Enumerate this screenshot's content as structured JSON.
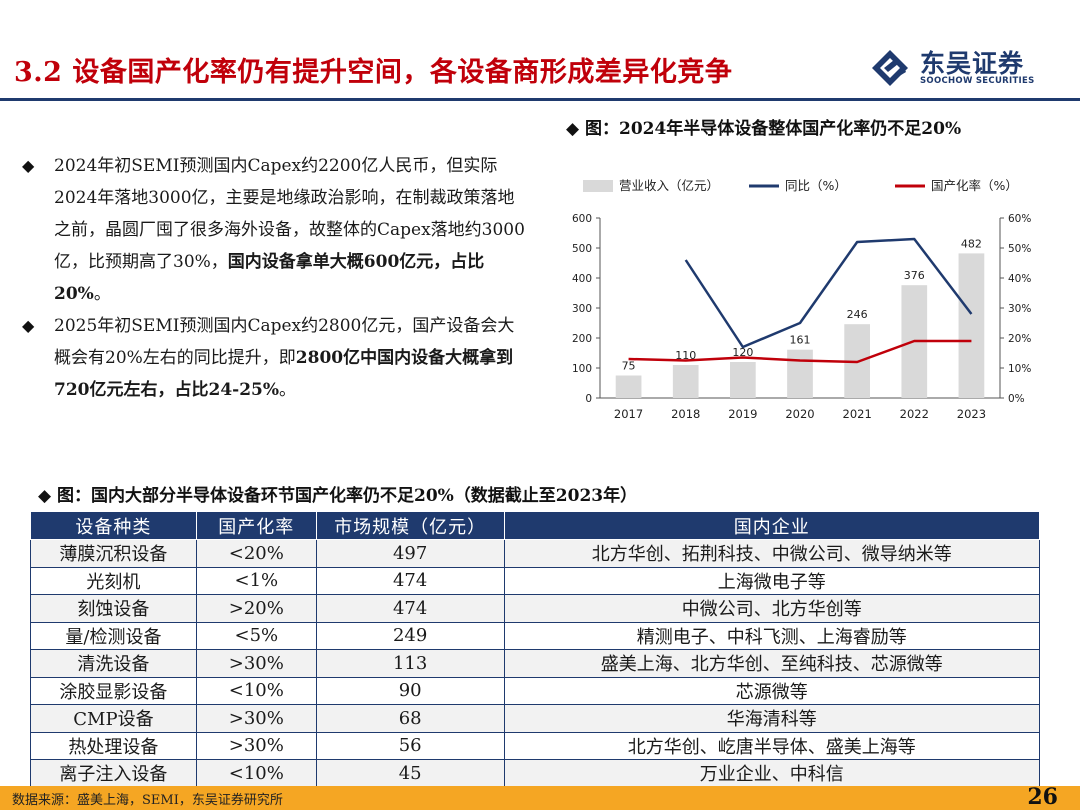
{
  "header": {
    "title": "3.2 设备国产化率仍有提升空间，各设备商形成差异化竞争",
    "logo_cn": "东吴证券",
    "logo_en": "SOOCHOW SECURITIES"
  },
  "bullets": [
    {
      "symbol": "◆",
      "text": "2024年初SEMI预测国内Capex约2200亿人民币，但实际2024年落地3000亿，主要是地缘政治影响，在制裁政策落地之前，晶圆厂囤了很多海外设备，故整体的Capex落地约3000亿，比预期高了30%，",
      "bold": "国内设备拿单大概600亿元，占比20%",
      "tail": "。"
    },
    {
      "symbol": "◆",
      "text": "2025年初SEMI预测国内Capex约2800亿元，国产设备会大概会有20%左右的同比提升，即",
      "bold": "2800亿中国内设备大概拿到720亿元左右，占比24-25%",
      "tail": "。"
    }
  ],
  "chart_caption": "◆ 图：2024年半导体设备整体国产化率仍不足20%",
  "chart_data": {
    "type": "bar",
    "categories": [
      "2017",
      "2018",
      "2019",
      "2020",
      "2021",
      "2022",
      "2023"
    ],
    "series": [
      {
        "name": "营业收入（亿元）",
        "type": "bar",
        "axis": "left",
        "color": "#d9d9d9",
        "values": [
          75,
          110,
          120,
          161,
          246,
          376,
          482
        ]
      },
      {
        "name": "同比（%）",
        "type": "line",
        "axis": "right",
        "color": "#1f3a6e",
        "values": [
          null,
          46,
          17,
          25,
          52,
          53,
          28
        ]
      },
      {
        "name": "国产化率（%）",
        "type": "line",
        "axis": "right",
        "color": "#c0000a",
        "values": [
          13,
          12.5,
          13.5,
          12.5,
          12,
          19,
          19
        ]
      }
    ],
    "data_labels": [
      "75",
      "110",
      "120",
      "161",
      "246",
      "376",
      "482"
    ],
    "ylim_left": [
      0,
      600
    ],
    "yticks_left": [
      "0",
      "100",
      "200",
      "300",
      "400",
      "500",
      "600"
    ],
    "ylim_right": [
      0,
      60
    ],
    "yticks_right": [
      "0%",
      "10%",
      "20%",
      "30%",
      "40%",
      "50%",
      "60%"
    ],
    "legend": "top"
  },
  "table_caption": "◆ 图：国内大部分半导体设备环节国产化率仍不足20%（数据截止至2023年）",
  "table": {
    "headers": [
      "设备种类",
      "国产化率",
      "市场规模（亿元）",
      "国内企业"
    ],
    "rows": [
      [
        "薄膜沉积设备",
        "<20%",
        "497",
        "北方华创、拓荆科技、中微公司、微导纳米等"
      ],
      [
        "光刻机",
        "<1%",
        "474",
        "上海微电子等"
      ],
      [
        "刻蚀设备",
        ">20%",
        "474",
        "中微公司、北方华创等"
      ],
      [
        "量/检测设备",
        "<5%",
        "249",
        "精测电子、中科飞测、上海睿励等"
      ],
      [
        "清洗设备",
        ">30%",
        "113",
        "盛美上海、北方华创、至纯科技、芯源微等"
      ],
      [
        "涂胶显影设备",
        "<10%",
        "90",
        "芯源微等"
      ],
      [
        "CMP设备",
        ">30%",
        "68",
        "华海清科等"
      ],
      [
        "热处理设备",
        ">30%",
        "56",
        "北方华创、屹唐半导体、盛美上海等"
      ],
      [
        "离子注入设备",
        "<10%",
        "45",
        "万业企业、中科信"
      ]
    ]
  },
  "footer": {
    "source": "数据来源：盛美上海，SEMI，东吴证券研究所",
    "page": "26"
  },
  "colors": {
    "brand": "#1f3a6e",
    "title_red": "#c0000a",
    "footer": "#f5a623"
  }
}
